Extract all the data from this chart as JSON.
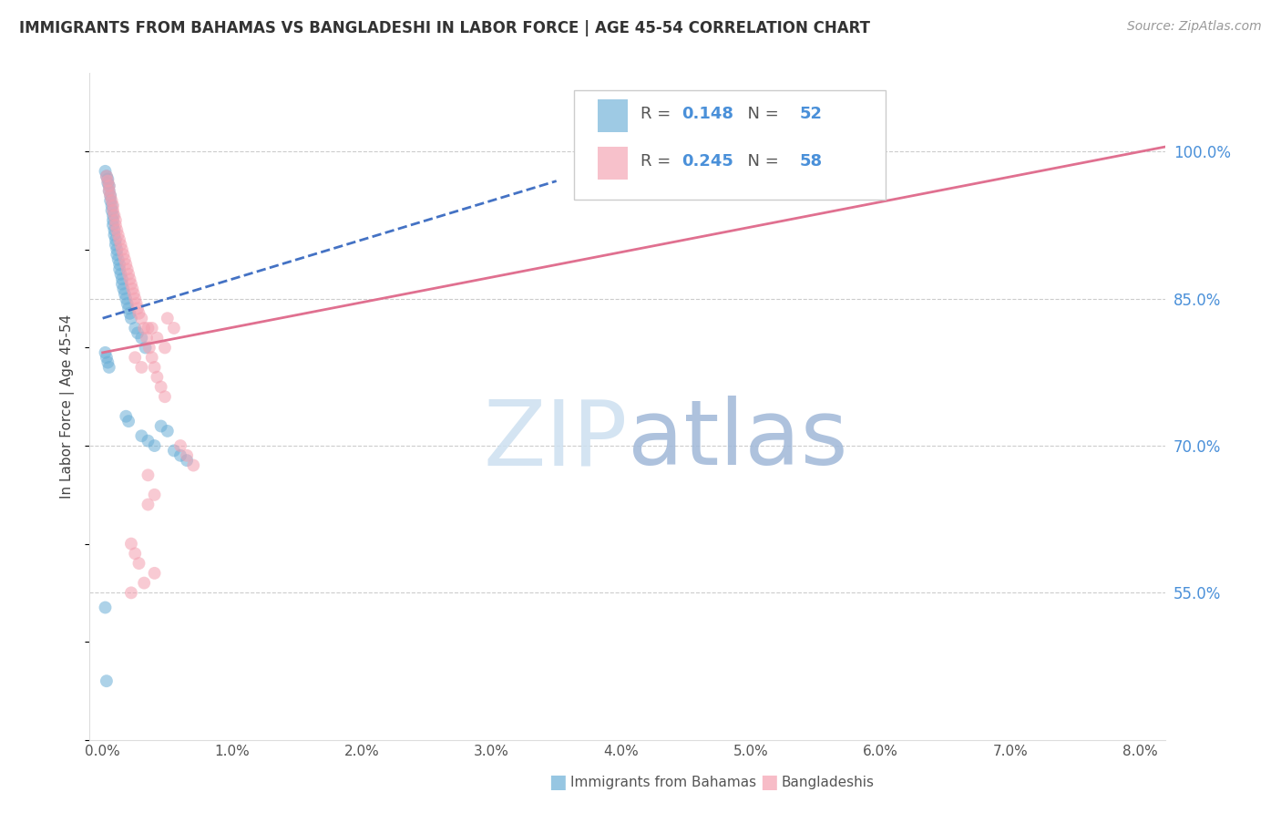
{
  "title": "IMMIGRANTS FROM BAHAMAS VS BANGLADESHI IN LABOR FORCE | AGE 45-54 CORRELATION CHART",
  "source_text": "Source: ZipAtlas.com",
  "ylabel": "In Labor Force | Age 45-54",
  "legend_label_blue": "Immigrants from Bahamas",
  "legend_label_pink": "Bangladeshis",
  "R_blue": 0.148,
  "N_blue": 52,
  "R_pink": 0.245,
  "N_pink": 58,
  "color_blue": "#6aaed6",
  "color_pink": "#f4a0b0",
  "color_trendline_blue": "#4472c4",
  "color_trendline_pink": "#e07090",
  "color_right_axis": "#4a90d9",
  "color_watermark": "#cde0f0",
  "xlim_min": -0.001,
  "xlim_max": 0.082,
  "ylim_min": 0.4,
  "ylim_max": 1.08,
  "xticks": [
    0.0,
    0.01,
    0.02,
    0.03,
    0.04,
    0.05,
    0.06,
    0.07,
    0.08
  ],
  "xtick_labels": [
    "0.0%",
    "1.0%",
    "2.0%",
    "3.0%",
    "4.0%",
    "5.0%",
    "6.0%",
    "7.0%",
    "8.0%"
  ],
  "yticks_right": [
    0.55,
    0.7,
    0.85,
    1.0
  ],
  "ytick_labels_right": [
    "55.0%",
    "70.0%",
    "85.0%",
    "100.0%"
  ],
  "blue_x": [
    0.0002,
    0.0003,
    0.0004,
    0.0004,
    0.0005,
    0.0005,
    0.0006,
    0.0006,
    0.0007,
    0.0007,
    0.0008,
    0.0008,
    0.0008,
    0.0009,
    0.0009,
    0.001,
    0.001,
    0.0011,
    0.0011,
    0.0012,
    0.0013,
    0.0013,
    0.0014,
    0.0015,
    0.0015,
    0.0016,
    0.0017,
    0.0018,
    0.0019,
    0.002,
    0.0021,
    0.0022,
    0.0025,
    0.0027,
    0.003,
    0.0033,
    0.0002,
    0.0003,
    0.0004,
    0.0005,
    0.0018,
    0.002,
    0.0045,
    0.005,
    0.003,
    0.0035,
    0.004,
    0.0055,
    0.006,
    0.0065,
    0.0002,
    0.0003
  ],
  "blue_y": [
    0.98,
    0.975,
    0.972,
    0.968,
    0.965,
    0.96,
    0.955,
    0.95,
    0.945,
    0.94,
    0.935,
    0.93,
    0.925,
    0.92,
    0.915,
    0.91,
    0.905,
    0.9,
    0.895,
    0.89,
    0.885,
    0.88,
    0.875,
    0.87,
    0.865,
    0.86,
    0.855,
    0.85,
    0.845,
    0.84,
    0.835,
    0.83,
    0.82,
    0.815,
    0.81,
    0.8,
    0.795,
    0.79,
    0.785,
    0.78,
    0.73,
    0.725,
    0.72,
    0.715,
    0.71,
    0.705,
    0.7,
    0.695,
    0.69,
    0.685,
    0.535,
    0.46
  ],
  "pink_x": [
    0.0003,
    0.0004,
    0.0005,
    0.0005,
    0.0006,
    0.0007,
    0.0008,
    0.0008,
    0.0009,
    0.001,
    0.001,
    0.0011,
    0.0012,
    0.0013,
    0.0014,
    0.0015,
    0.0016,
    0.0017,
    0.0018,
    0.0019,
    0.002,
    0.0021,
    0.0022,
    0.0023,
    0.0024,
    0.0025,
    0.0026,
    0.0027,
    0.0028,
    0.003,
    0.0032,
    0.0034,
    0.0036,
    0.0038,
    0.004,
    0.0042,
    0.0045,
    0.0048,
    0.005,
    0.0055,
    0.006,
    0.0065,
    0.007,
    0.0035,
    0.004,
    0.0035,
    0.0038,
    0.0042,
    0.0048,
    0.0025,
    0.003,
    0.0022,
    0.0025,
    0.0028,
    0.004,
    0.0032,
    0.0022,
    0.0035
  ],
  "pink_y": [
    0.975,
    0.97,
    0.965,
    0.96,
    0.955,
    0.95,
    0.945,
    0.94,
    0.935,
    0.93,
    0.925,
    0.92,
    0.915,
    0.91,
    0.905,
    0.9,
    0.895,
    0.89,
    0.885,
    0.88,
    0.875,
    0.87,
    0.865,
    0.86,
    0.855,
    0.85,
    0.845,
    0.84,
    0.835,
    0.83,
    0.82,
    0.81,
    0.8,
    0.79,
    0.78,
    0.77,
    0.76,
    0.75,
    0.83,
    0.82,
    0.7,
    0.69,
    0.68,
    0.67,
    0.65,
    0.64,
    0.82,
    0.81,
    0.8,
    0.79,
    0.78,
    0.6,
    0.59,
    0.58,
    0.57,
    0.56,
    0.55,
    0.82
  ],
  "trendline_blue_x0": 0.0,
  "trendline_blue_x1": 0.035,
  "trendline_blue_y0": 0.83,
  "trendline_blue_y1": 0.97,
  "trendline_pink_x0": 0.0,
  "trendline_pink_x1": 0.082,
  "trendline_pink_y0": 0.795,
  "trendline_pink_y1": 1.005
}
